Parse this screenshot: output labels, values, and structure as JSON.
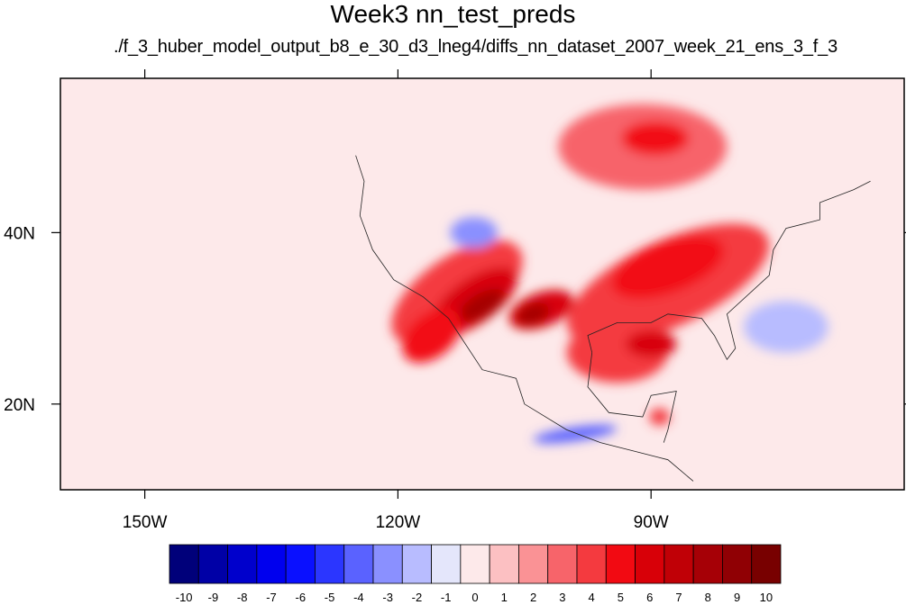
{
  "chart_data": {
    "type": "heatmap",
    "title": "Week3 nn_test_preds",
    "subtitle": "./f_3_huber_model_output_b8_e_30_d3_lneg4/diffs_nn_dataset_2007_week_21_ens_3_f_3",
    "lon_range": [
      -160,
      -60
    ],
    "lat_range": [
      10,
      58
    ],
    "x_ticks": [
      {
        "value": -150,
        "label": "150W"
      },
      {
        "value": -120,
        "label": "120W"
      },
      {
        "value": -90,
        "label": "90W"
      }
    ],
    "y_ticks": [
      {
        "value": 40,
        "label": "40N"
      },
      {
        "value": 20,
        "label": "20N"
      }
    ],
    "colorbar": {
      "levels": [
        -10,
        -9,
        -8,
        -7,
        -6,
        -5,
        -4,
        -3,
        -2,
        -1,
        0,
        1,
        2,
        3,
        4,
        5,
        6,
        7,
        8,
        9,
        10
      ],
      "colors": [
        "#00007a",
        "#0000a6",
        "#0000cc",
        "#0000ee",
        "#0a10ff",
        "#2b36ff",
        "#5a62ff",
        "#8a90ff",
        "#b8bcff",
        "#e4e6fb",
        "#fde9ea",
        "#fcc0c2",
        "#fa9295",
        "#f7646a",
        "#f43a3f",
        "#f20a12",
        "#d80008",
        "#c00006",
        "#a60006",
        "#900004",
        "#780000"
      ]
    },
    "blobs": [
      {
        "lon": -113,
        "lat": 33,
        "rx": 9,
        "ry": 4.2,
        "rot": -35,
        "level": 4
      },
      {
        "lon": -111,
        "lat": 32,
        "rx": 6,
        "ry": 2.6,
        "rot": -35,
        "level": 6
      },
      {
        "lon": -110,
        "lat": 31.5,
        "rx": 3,
        "ry": 1.4,
        "rot": -30,
        "level": 8
      },
      {
        "lon": -103,
        "lat": 31,
        "rx": 4,
        "ry": 2,
        "rot": -20,
        "level": 6
      },
      {
        "lon": -104,
        "lat": 30.5,
        "rx": 2,
        "ry": 1.2,
        "rot": -20,
        "level": 8
      },
      {
        "lon": -88,
        "lat": 34,
        "rx": 13,
        "ry": 5,
        "rot": -25,
        "level": 4
      },
      {
        "lon": -88,
        "lat": 36,
        "rx": 7,
        "ry": 3,
        "rot": -20,
        "level": 5
      },
      {
        "lon": -94,
        "lat": 26,
        "rx": 6,
        "ry": 3.5,
        "rot": 0,
        "level": 4
      },
      {
        "lon": -90,
        "lat": 27,
        "rx": 3,
        "ry": 1.6,
        "rot": 0,
        "level": 6
      },
      {
        "lon": -91,
        "lat": 50,
        "rx": 10,
        "ry": 5,
        "rot": 0,
        "level": 3
      },
      {
        "lon": -89.5,
        "lat": 51,
        "rx": 4,
        "ry": 2,
        "rot": 0,
        "level": 5
      },
      {
        "lon": -116,
        "lat": 28,
        "rx": 4,
        "ry": 2.5,
        "rot": -40,
        "level": 5
      },
      {
        "lon": -111,
        "lat": 40,
        "rx": 2.8,
        "ry": 1.8,
        "rot": 0,
        "level": -3
      },
      {
        "lon": -74,
        "lat": 29,
        "rx": 5,
        "ry": 3,
        "rot": 0,
        "level": -2
      },
      {
        "lon": -99,
        "lat": 16.5,
        "rx": 5,
        "ry": 0.8,
        "rot": -8,
        "level": -4
      },
      {
        "lon": -89,
        "lat": 18.5,
        "rx": 1.2,
        "ry": 1,
        "rot": 0,
        "level": 4
      }
    ]
  }
}
